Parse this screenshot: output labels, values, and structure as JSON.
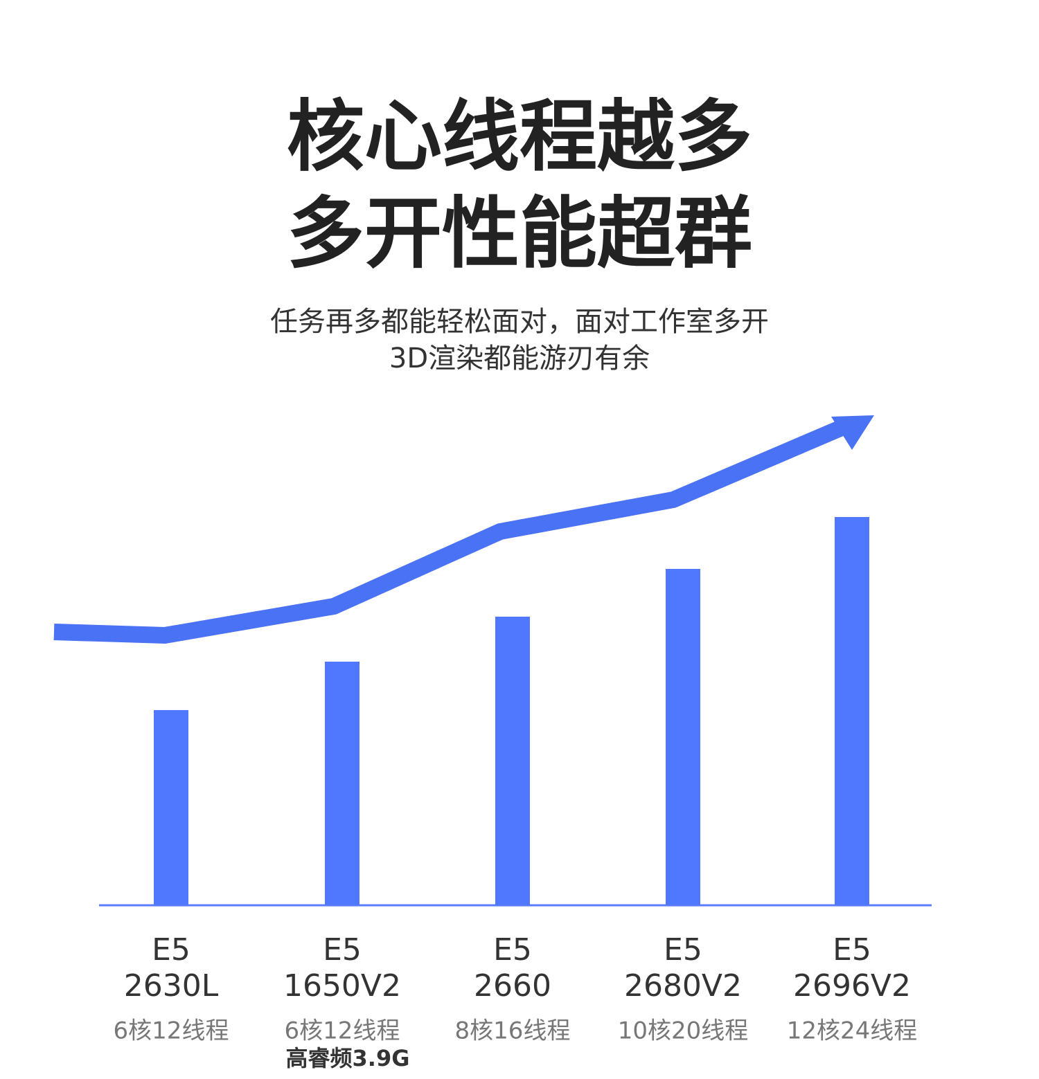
{
  "chart_data": {
    "type": "bar",
    "title": [
      "核心线程越多",
      "多开性能超群"
    ],
    "subtitle": [
      "任务再多都能轻松面对，面对工作室多开",
      "3D渲染都能游刃有余"
    ],
    "categories": [
      [
        "E5",
        "2630L"
      ],
      [
        "E5",
        "1650V2"
      ],
      [
        "E5",
        "2660"
      ],
      [
        "E5",
        "2680V2"
      ],
      [
        "E5",
        "2696V2"
      ]
    ],
    "sublabels": [
      "6核12线程",
      "6核12线程",
      "8核16线程",
      "10核20线程",
      "12核24线程"
    ],
    "annotation": "高睿频3.9G",
    "values": [
      281,
      351,
      416,
      485,
      560
    ],
    "ylim": [
      0,
      600
    ],
    "color": "#4f78ff"
  }
}
